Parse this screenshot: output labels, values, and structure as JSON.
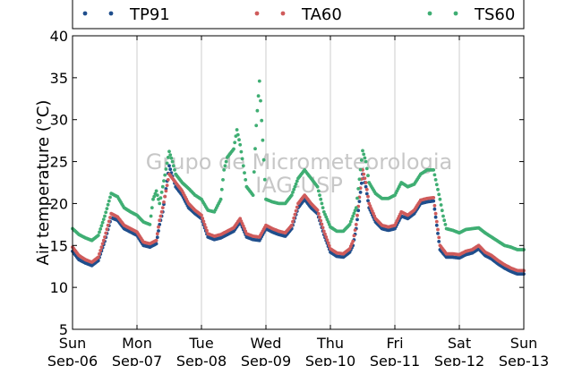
{
  "chart_data": {
    "type": "scatter",
    "ylabel": "Air temperature (°C)",
    "ylim": [
      5,
      40
    ],
    "yticks": [
      "5",
      "10",
      "15",
      "20",
      "25",
      "30",
      "35",
      "40"
    ],
    "xticks": [
      {
        "day": "Sun",
        "date": "Sep-06"
      },
      {
        "day": "Mon",
        "date": "Sep-07"
      },
      {
        "day": "Tue",
        "date": "Sep-08"
      },
      {
        "day": "Wed",
        "date": "Sep-09"
      },
      {
        "day": "Thu",
        "date": "Sep-10"
      },
      {
        "day": "Fri",
        "date": "Sep-11"
      },
      {
        "day": "Sat",
        "date": "Sep-12"
      },
      {
        "day": "Sun",
        "date": "Sep-13"
      }
    ],
    "grid": "vertical",
    "legend_position": "top",
    "watermark": [
      "Grupo de Micrometeorologia",
      "IAG-USP"
    ],
    "x_unit": "days since Sep-06 00:00",
    "series": [
      {
        "name": "TP91",
        "color": "#1f4e8c",
        "points": [
          [
            0,
            14.3
          ],
          [
            0.1,
            13.3
          ],
          [
            0.2,
            12.9
          ],
          [
            0.3,
            12.6
          ],
          [
            0.4,
            13.2
          ],
          [
            0.5,
            15.5
          ],
          [
            0.6,
            18.3
          ],
          [
            0.7,
            18.0
          ],
          [
            0.8,
            17.0
          ],
          [
            0.9,
            16.6
          ],
          [
            1.0,
            16.2
          ],
          [
            1.1,
            15.0
          ],
          [
            1.2,
            14.8
          ],
          [
            1.3,
            15.2
          ],
          [
            1.35,
            17.5
          ],
          [
            1.4,
            19.0
          ],
          [
            1.5,
            24.5
          ],
          [
            1.6,
            22.0
          ],
          [
            1.7,
            21.0
          ],
          [
            1.8,
            19.5
          ],
          [
            1.9,
            18.8
          ],
          [
            2.0,
            18.2
          ],
          [
            2.1,
            16.0
          ],
          [
            2.2,
            15.7
          ],
          [
            2.3,
            15.9
          ],
          [
            2.4,
            16.3
          ],
          [
            2.5,
            16.7
          ],
          [
            2.6,
            17.8
          ],
          [
            2.7,
            16.0
          ],
          [
            2.8,
            15.7
          ],
          [
            2.9,
            15.6
          ],
          [
            3.0,
            17.0
          ],
          [
            3.1,
            16.6
          ],
          [
            3.2,
            16.3
          ],
          [
            3.3,
            16.1
          ],
          [
            3.4,
            17.0
          ],
          [
            3.5,
            19.5
          ],
          [
            3.6,
            20.5
          ],
          [
            3.7,
            19.5
          ],
          [
            3.8,
            18.8
          ],
          [
            3.9,
            16.3
          ],
          [
            4.0,
            14.2
          ],
          [
            4.1,
            13.7
          ],
          [
            4.2,
            13.6
          ],
          [
            4.3,
            14.2
          ],
          [
            4.35,
            15.0
          ],
          [
            4.4,
            17.0
          ],
          [
            4.5,
            23.5
          ],
          [
            4.55,
            22.0
          ],
          [
            4.6,
            19.5
          ],
          [
            4.7,
            17.8
          ],
          [
            4.8,
            17.0
          ],
          [
            4.9,
            16.8
          ],
          [
            5.0,
            17.0
          ],
          [
            5.1,
            18.5
          ],
          [
            5.2,
            18.2
          ],
          [
            5.3,
            18.8
          ],
          [
            5.4,
            20.0
          ],
          [
            5.5,
            20.2
          ],
          [
            5.6,
            20.3
          ],
          [
            5.7,
            14.5
          ],
          [
            5.8,
            13.6
          ],
          [
            5.9,
            13.6
          ],
          [
            6.0,
            13.5
          ],
          [
            6.1,
            13.9
          ],
          [
            6.2,
            14.1
          ],
          [
            6.3,
            14.6
          ],
          [
            6.4,
            13.8
          ],
          [
            6.5,
            13.4
          ],
          [
            6.6,
            12.8
          ],
          [
            6.7,
            12.3
          ],
          [
            6.8,
            11.9
          ],
          [
            6.9,
            11.6
          ],
          [
            7.0,
            11.6
          ]
        ]
      },
      {
        "name": "TA60",
        "color": "#cf5b5b",
        "points": [
          [
            0,
            14.8
          ],
          [
            0.1,
            13.8
          ],
          [
            0.2,
            13.3
          ],
          [
            0.3,
            13.0
          ],
          [
            0.4,
            13.6
          ],
          [
            0.5,
            16.0
          ],
          [
            0.6,
            18.8
          ],
          [
            0.7,
            18.4
          ],
          [
            0.8,
            17.4
          ],
          [
            0.9,
            17.0
          ],
          [
            1.0,
            16.6
          ],
          [
            1.1,
            15.4
          ],
          [
            1.2,
            15.2
          ],
          [
            1.3,
            15.6
          ],
          [
            1.35,
            18.0
          ],
          [
            1.4,
            19.5
          ],
          [
            1.5,
            23.5
          ],
          [
            1.6,
            22.5
          ],
          [
            1.7,
            21.5
          ],
          [
            1.8,
            20.0
          ],
          [
            1.9,
            19.2
          ],
          [
            2.0,
            18.6
          ],
          [
            2.1,
            16.4
          ],
          [
            2.2,
            16.1
          ],
          [
            2.3,
            16.3
          ],
          [
            2.4,
            16.7
          ],
          [
            2.5,
            17.1
          ],
          [
            2.6,
            18.2
          ],
          [
            2.7,
            16.4
          ],
          [
            2.8,
            16.1
          ],
          [
            2.9,
            16.0
          ],
          [
            3.0,
            17.4
          ],
          [
            3.1,
            17.0
          ],
          [
            3.2,
            16.7
          ],
          [
            3.3,
            16.5
          ],
          [
            3.4,
            17.4
          ],
          [
            3.5,
            20.0
          ],
          [
            3.6,
            21.0
          ],
          [
            3.7,
            20.0
          ],
          [
            3.8,
            19.2
          ],
          [
            3.9,
            16.7
          ],
          [
            4.0,
            14.6
          ],
          [
            4.1,
            14.1
          ],
          [
            4.2,
            14.0
          ],
          [
            4.3,
            14.6
          ],
          [
            4.35,
            15.5
          ],
          [
            4.4,
            17.5
          ],
          [
            4.5,
            24.0
          ],
          [
            4.55,
            22.5
          ],
          [
            4.6,
            20.0
          ],
          [
            4.7,
            18.2
          ],
          [
            4.8,
            17.4
          ],
          [
            4.9,
            17.2
          ],
          [
            5.0,
            17.4
          ],
          [
            5.1,
            19.0
          ],
          [
            5.2,
            18.6
          ],
          [
            5.3,
            19.2
          ],
          [
            5.4,
            20.4
          ],
          [
            5.5,
            20.6
          ],
          [
            5.6,
            20.7
          ],
          [
            5.7,
            15.0
          ],
          [
            5.8,
            14.0
          ],
          [
            5.9,
            14.0
          ],
          [
            6.0,
            13.9
          ],
          [
            6.1,
            14.3
          ],
          [
            6.2,
            14.5
          ],
          [
            6.3,
            15.0
          ],
          [
            6.4,
            14.2
          ],
          [
            6.5,
            13.8
          ],
          [
            6.6,
            13.2
          ],
          [
            6.7,
            12.7
          ],
          [
            6.8,
            12.3
          ],
          [
            6.9,
            12.0
          ],
          [
            7.0,
            12.0
          ]
        ]
      },
      {
        "name": "TS60",
        "color": "#3fae73",
        "points": [
          [
            0,
            17.0
          ],
          [
            0.1,
            16.3
          ],
          [
            0.2,
            15.9
          ],
          [
            0.3,
            15.6
          ],
          [
            0.4,
            16.2
          ],
          [
            0.5,
            18.5
          ],
          [
            0.6,
            21.2
          ],
          [
            0.7,
            20.8
          ],
          [
            0.8,
            19.5
          ],
          [
            0.9,
            19.0
          ],
          [
            1.0,
            18.6
          ],
          [
            1.1,
            17.8
          ],
          [
            1.2,
            17.5
          ],
          [
            1.25,
            20.5
          ],
          [
            1.3,
            21.5
          ],
          [
            1.35,
            20.0
          ],
          [
            1.4,
            22.0
          ],
          [
            1.5,
            26.2
          ],
          [
            1.55,
            25.0
          ],
          [
            1.6,
            23.5
          ],
          [
            1.7,
            22.5
          ],
          [
            1.8,
            21.8
          ],
          [
            1.9,
            21.0
          ],
          [
            2.0,
            20.5
          ],
          [
            2.1,
            19.2
          ],
          [
            2.2,
            19.0
          ],
          [
            2.3,
            20.5
          ],
          [
            2.35,
            24.0
          ],
          [
            2.4,
            25.5
          ],
          [
            2.5,
            26.5
          ],
          [
            2.55,
            28.8
          ],
          [
            2.6,
            27.0
          ],
          [
            2.7,
            22.0
          ],
          [
            2.8,
            21.0
          ],
          [
            2.85,
            29.3
          ],
          [
            2.9,
            34.6
          ],
          [
            3.0,
            20.5
          ],
          [
            3.1,
            20.2
          ],
          [
            3.2,
            20.0
          ],
          [
            3.3,
            20.0
          ],
          [
            3.4,
            21.0
          ],
          [
            3.5,
            23.0
          ],
          [
            3.6,
            24.0
          ],
          [
            3.7,
            23.0
          ],
          [
            3.8,
            22.0
          ],
          [
            3.9,
            19.0
          ],
          [
            4.0,
            17.2
          ],
          [
            4.1,
            16.7
          ],
          [
            4.2,
            16.7
          ],
          [
            4.3,
            17.5
          ],
          [
            4.4,
            19.5
          ],
          [
            4.5,
            26.3
          ],
          [
            4.55,
            25.0
          ],
          [
            4.6,
            22.5
          ],
          [
            4.7,
            21.2
          ],
          [
            4.8,
            20.6
          ],
          [
            4.9,
            20.6
          ],
          [
            5.0,
            21.0
          ],
          [
            5.1,
            22.5
          ],
          [
            5.2,
            22.0
          ],
          [
            5.3,
            22.3
          ],
          [
            5.4,
            23.5
          ],
          [
            5.5,
            24.0
          ],
          [
            5.6,
            24.0
          ],
          [
            5.7,
            20.5
          ],
          [
            5.75,
            18.5
          ],
          [
            5.8,
            17.0
          ],
          [
            5.9,
            16.8
          ],
          [
            6.0,
            16.5
          ],
          [
            6.1,
            16.9
          ],
          [
            6.2,
            17.0
          ],
          [
            6.3,
            17.1
          ],
          [
            6.4,
            16.5
          ],
          [
            6.5,
            16.0
          ],
          [
            6.6,
            15.5
          ],
          [
            6.7,
            15.0
          ],
          [
            6.8,
            14.8
          ],
          [
            6.9,
            14.5
          ],
          [
            7.0,
            14.5
          ]
        ]
      }
    ]
  }
}
